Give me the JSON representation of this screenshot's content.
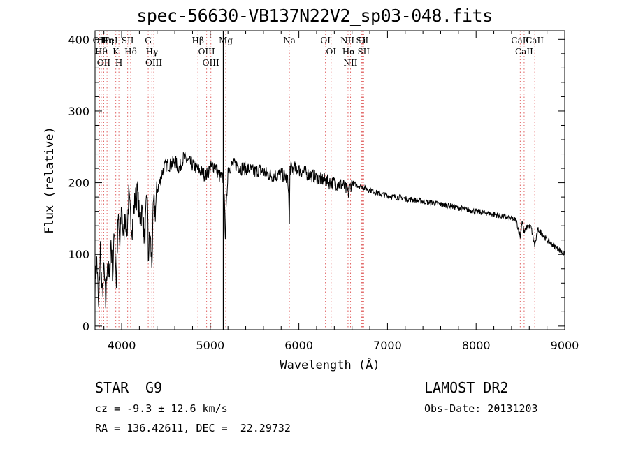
{
  "chart_data": {
    "type": "line",
    "title": "spec-56630-VB137N22V2_sp03-048.fits",
    "xlabel": "Wavelength (Å)",
    "ylabel": "Flux (relative)",
    "xlim": [
      3700,
      9000
    ],
    "ylim": [
      -5,
      412
    ],
    "xticks": [
      4000,
      5000,
      6000,
      7000,
      8000,
      9000
    ],
    "yticks": [
      0,
      100,
      200,
      300,
      400
    ],
    "series": [
      {
        "x": [
          3700,
          3720,
          3740,
          3760,
          3780,
          3800,
          3820,
          3840,
          3860,
          3880,
          3900,
          3920,
          3940,
          3960,
          3980,
          4000,
          4020,
          4040,
          4060,
          4080,
          4100,
          4120,
          4150,
          4180,
          4200,
          4230,
          4260,
          4290,
          4300,
          4320,
          4340,
          4360,
          4380,
          4400,
          4430,
          4460,
          4500,
          4550,
          4600,
          4650,
          4700,
          4750,
          4800,
          4850,
          4900,
          4950,
          5000,
          5050,
          5100,
          5150,
          5170,
          5200,
          5250,
          5300,
          5350,
          5400,
          5450,
          5500,
          5550,
          5600,
          5650,
          5700,
          5750,
          5800,
          5850,
          5880,
          5893,
          5900,
          5950,
          6000,
          6050,
          6100,
          6150,
          6200,
          6250,
          6300,
          6350,
          6400,
          6450,
          6500,
          6563,
          6580,
          6600,
          6650,
          6700,
          6750,
          6800,
          6900,
          7000,
          7100,
          7200,
          7300,
          7400,
          7500,
          7600,
          7700,
          7800,
          7900,
          8000,
          8100,
          8200,
          8300,
          8400,
          8450,
          8498,
          8520,
          8542,
          8580,
          8620,
          8662,
          8700,
          8750,
          8800,
          8850,
          8900,
          8950,
          9000
        ],
        "y": [
          60,
          95,
          20,
          110,
          40,
          80,
          30,
          95,
          60,
          120,
          70,
          140,
          60,
          150,
          110,
          170,
          120,
          160,
          130,
          180,
          150,
          140,
          175,
          185,
          150,
          160,
          120,
          190,
          95,
          130,
          85,
          170,
          160,
          190,
          200,
          215,
          225,
          225,
          230,
          220,
          235,
          230,
          225,
          220,
          215,
          210,
          220,
          225,
          210,
          205,
          130,
          220,
          225,
          225,
          220,
          220,
          218,
          215,
          218,
          215,
          212,
          210,
          210,
          212,
          208,
          200,
          140,
          220,
          220,
          218,
          215,
          212,
          210,
          207,
          205,
          203,
          200,
          200,
          198,
          197,
          185,
          195,
          200,
          197,
          195,
          192,
          190,
          185,
          182,
          180,
          178,
          176,
          174,
          172,
          170,
          168,
          165,
          162,
          160,
          158,
          156,
          153,
          150,
          148,
          125,
          148,
          130,
          140,
          138,
          112,
          135,
          128,
          120,
          115,
          110,
          105,
          100
        ]
      }
    ],
    "line_marks": [
      {
        "wl": 3750,
        "label": "OII"
      },
      {
        "wl": 3770,
        "label": "H&#952;"
      },
      {
        "wl": 3798,
        "label": "OII"
      },
      {
        "wl": 3835,
        "label": "H&#951;"
      },
      {
        "wl": 3869,
        "label": "HeI"
      },
      {
        "wl": 3934,
        "label": "K"
      },
      {
        "wl": 3969,
        "label": "H"
      },
      {
        "wl": 4068,
        "label": "SII"
      },
      {
        "wl": 4102,
        "label": "H&#948;"
      },
      {
        "wl": 4300,
        "label": "G"
      },
      {
        "wl": 4341,
        "label": "H&#947;"
      },
      {
        "wl": 4363,
        "label": "OIII"
      },
      {
        "wl": 4861,
        "label": "H&#946;"
      },
      {
        "wl": 4959,
        "label": "OIII"
      },
      {
        "wl": 5007,
        "label": "OIII"
      },
      {
        "wl": 5175,
        "label": "Mg"
      },
      {
        "wl": 5893,
        "label": "Na"
      },
      {
        "wl": 6300,
        "label": "OI"
      },
      {
        "wl": 6364,
        "label": "OI"
      },
      {
        "wl": 6548,
        "label": "NII"
      },
      {
        "wl": 6563,
        "label": "H&#945;"
      },
      {
        "wl": 6583,
        "label": "NII"
      },
      {
        "wl": 6708,
        "label": "Li"
      },
      {
        "wl": 6716,
        "label": "SII"
      },
      {
        "wl": 6731,
        "label": "SII"
      },
      {
        "wl": 8498,
        "label": "CaII"
      },
      {
        "wl": 8542,
        "label": "CaII"
      },
      {
        "wl": 8662,
        "label": "CaII"
      }
    ],
    "vertical_line_wl": 5150,
    "grid": false
  },
  "info": {
    "object_class": "STAR",
    "subclass": "G9",
    "survey": "LAMOST DR2",
    "cz": "cz = -9.3 ± 12.6 km/s",
    "obs_date": "Obs-Date: 20131203",
    "coords": "RA = 136.42611, DEC =  22.29732"
  },
  "colors": {
    "axis": "#000000",
    "line": "#000000",
    "marks": "#e06060"
  }
}
